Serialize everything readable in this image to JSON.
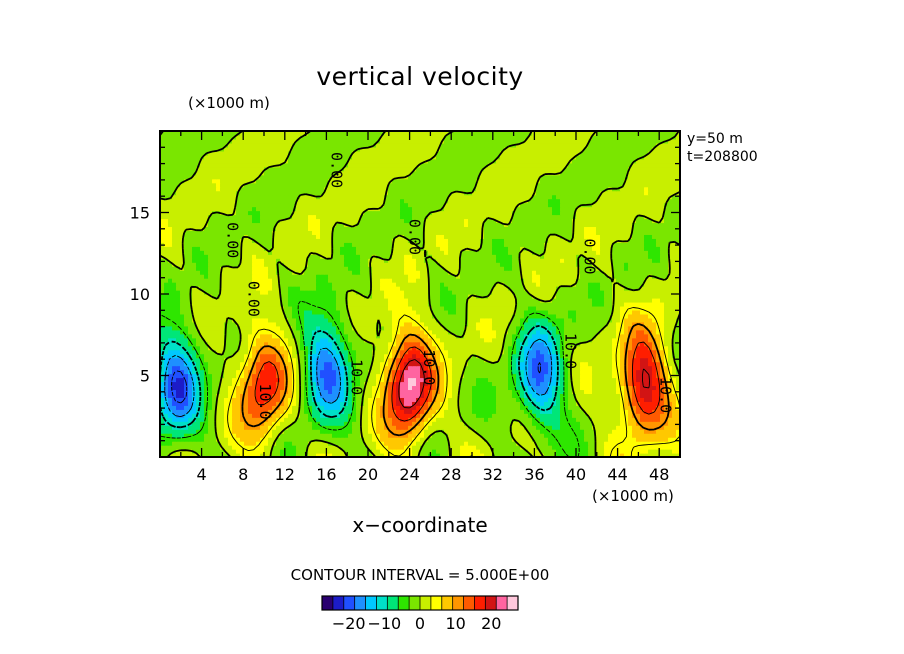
{
  "header": {
    "title": "vertical velocity",
    "y_unit": "(×1000 m)",
    "x_unit": "(×1000 m)",
    "x_label": "x−coordinate",
    "y_position": "y=50  m",
    "time": "t=208800",
    "contour_interval": "CONTOUR INTERVAL = 5.000E+00"
  },
  "chart_data": {
    "type": "heatmap",
    "title": "vertical velocity",
    "xlabel": "x−coordinate",
    "ylabel": "",
    "x_unit": "(×1000 m)",
    "y_unit": "(×1000 m)",
    "xlim": [
      0,
      50
    ],
    "ylim": [
      0,
      20
    ],
    "x_ticks": [
      4,
      8,
      12,
      16,
      20,
      24,
      28,
      32,
      36,
      40,
      44,
      48
    ],
    "y_ticks": [
      5,
      10,
      15
    ],
    "contour_interval": 5.0,
    "contour_labels": [
      {
        "x": 8.5,
        "y": 9.7,
        "text": "0.00"
      },
      {
        "x": 6.5,
        "y": 13.3,
        "text": "0.00"
      },
      {
        "x": 16.5,
        "y": 17.6,
        "text": "0.00"
      },
      {
        "x": 24.0,
        "y": 13.5,
        "text": "0.00"
      },
      {
        "x": 40.8,
        "y": 12.3,
        "text": "0.00"
      },
      {
        "x": 9.6,
        "y": 3.4,
        "text": "10.0"
      },
      {
        "x": 18.4,
        "y": 4.9,
        "text": "10.0"
      },
      {
        "x": 25.4,
        "y": 5.5,
        "text": "10.0"
      },
      {
        "x": 39.0,
        "y": 6.5,
        "text": "10.0"
      },
      {
        "x": 48.1,
        "y": 3.8,
        "text": "10.0"
      }
    ],
    "features": [
      {
        "sign": "negative",
        "x": 1.5,
        "y": 4.5,
        "amplitude": -20
      },
      {
        "sign": "positive",
        "x": 10.0,
        "y": 4.5,
        "amplitude": 18
      },
      {
        "sign": "negative",
        "x": 16.0,
        "y": 5.5,
        "amplitude": -18
      },
      {
        "sign": "positive",
        "x": 24.0,
        "y": 4.5,
        "amplitude": 25
      },
      {
        "sign": "negative",
        "x": 36.5,
        "y": 5.0,
        "amplitude": -18
      },
      {
        "sign": "positive",
        "x": 46.5,
        "y": 4.5,
        "amplitude": 22
      }
    ],
    "colorbar": {
      "ticks": [
        -20,
        -10,
        0,
        10,
        20
      ],
      "tick_labels": [
        "−20",
        "−10",
        "0",
        "10",
        "20"
      ],
      "range": [
        -27.5,
        27.5
      ],
      "colors": [
        "#2a0070",
        "#1c1cc8",
        "#2050ff",
        "#1e90ff",
        "#00c8ff",
        "#00e0c8",
        "#00e678",
        "#2ee600",
        "#7ae600",
        "#c8ef00",
        "#ffff00",
        "#ffc800",
        "#ff9600",
        "#ff5a00",
        "#ff1e00",
        "#d21414",
        "#ff64a0",
        "#ffc8dc"
      ]
    }
  }
}
